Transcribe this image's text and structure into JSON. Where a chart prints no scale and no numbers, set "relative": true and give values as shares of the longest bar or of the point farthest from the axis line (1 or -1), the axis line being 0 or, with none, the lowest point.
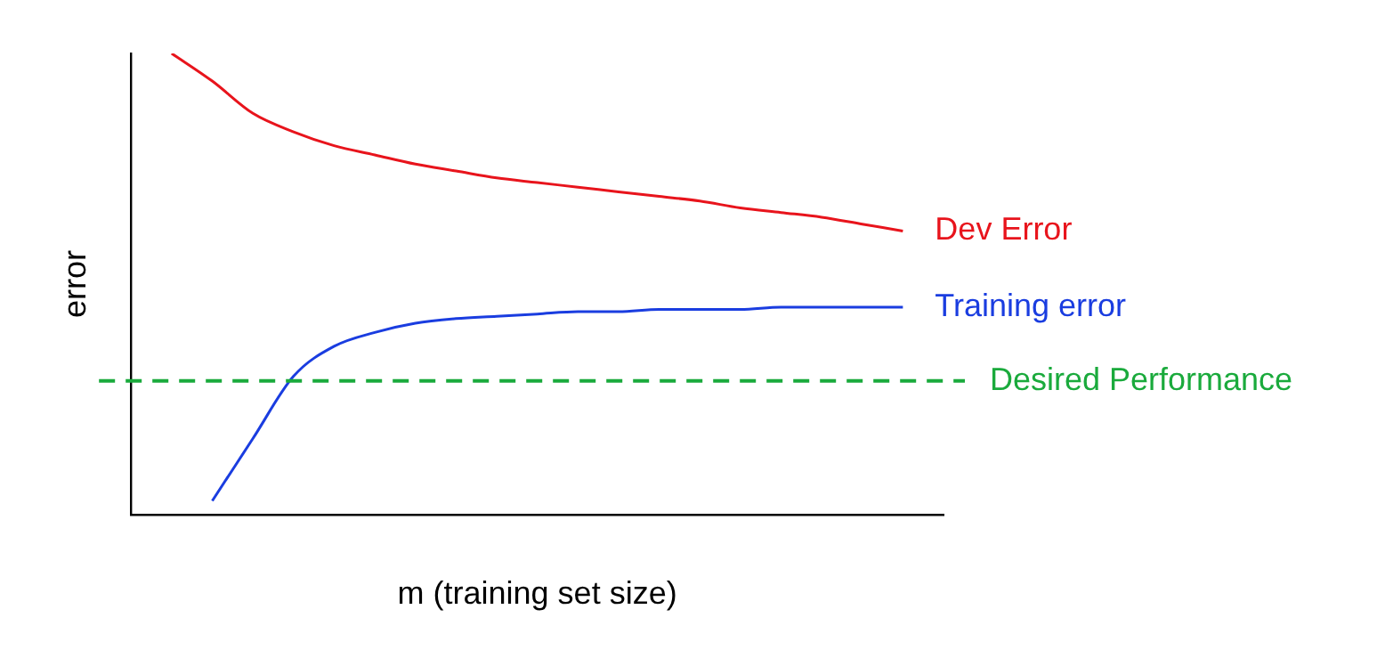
{
  "chart_data": {
    "type": "line",
    "relative": true,
    "xlabel": "m (training set size)",
    "ylabel": "error",
    "categories": [
      null,
      null,
      null,
      null,
      null,
      null,
      null,
      null,
      null,
      null,
      null,
      null,
      null,
      null,
      null,
      null,
      null,
      null,
      null,
      null,
      null
    ],
    "series": [
      {
        "name": "Dev Error",
        "color": "#e8141c",
        "values": [
          null,
          1,
          0.94,
          0.87,
          0.83,
          0.8,
          0.78,
          0.76,
          0.745,
          0.73,
          0.72,
          0.71,
          0.7,
          0.69,
          0.68,
          0.665,
          0.655,
          0.645,
          0.63,
          0.615,
          null
        ]
      },
      {
        "name": "Training error",
        "color": "#1a3de0",
        "values": [
          null,
          null,
          0.03,
          0.165,
          0.3,
          0.365,
          0.395,
          0.415,
          0.425,
          0.43,
          0.435,
          0.44,
          0.44,
          0.445,
          0.445,
          0.445,
          0.45,
          0.45,
          0.45,
          0.45,
          null
        ]
      }
    ],
    "ref_lines": [
      {
        "axis": "y",
        "value": 0.29,
        "label": "Desired Performance",
        "color": "#1aaa3c",
        "line_style": "dashed"
      }
    ],
    "legend": false,
    "marker": "none",
    "line_style": "solid",
    "grid": false
  }
}
